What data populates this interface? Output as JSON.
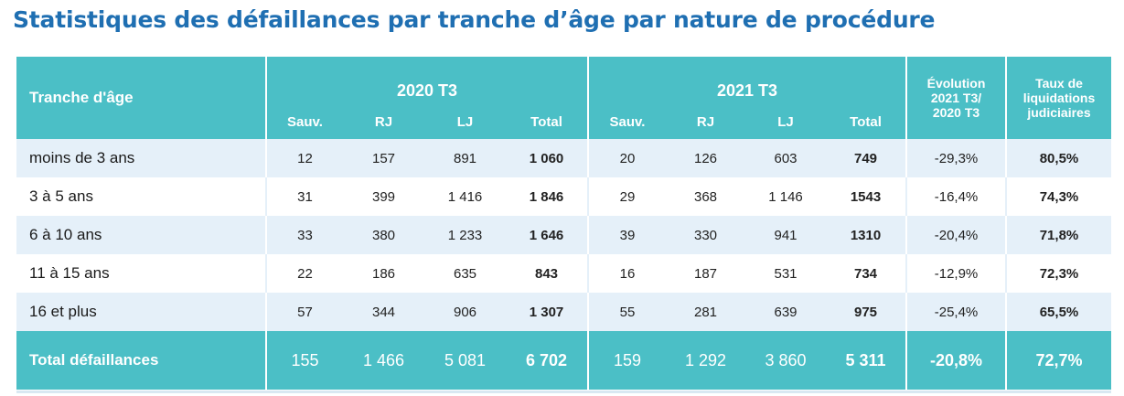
{
  "title": "Statistiques des défaillances par tranche d’âge par nature de procédure",
  "header": {
    "row_head": "Tranche d'âge",
    "group_2020": "2020 T3",
    "group_2021": "2021 T3",
    "evolution": [
      "Évolution",
      "2021 T3/",
      "2020 T3"
    ],
    "taux": [
      "Taux de",
      "liquidations",
      "judiciaires"
    ],
    "sub": {
      "sauv": "Sauv.",
      "rj": "RJ",
      "lj": "LJ",
      "total": "Total"
    }
  },
  "rows": [
    {
      "label": "moins de 3 ans",
      "s20": "12",
      "rj20": "157",
      "lj20": "891",
      "t20": "1 060",
      "s21": "20",
      "rj21": "126",
      "lj21": "603",
      "t21": "749",
      "evo": "-29,3%",
      "taux": "80,5%"
    },
    {
      "label": "3 à 5 ans",
      "s20": "31",
      "rj20": "399",
      "lj20": "1 416",
      "t20": "1 846",
      "s21": "29",
      "rj21": "368",
      "lj21": "1 146",
      "t21": "1543",
      "evo": "-16,4%",
      "taux": "74,3%"
    },
    {
      "label": "6 à 10 ans",
      "s20": "33",
      "rj20": "380",
      "lj20": "1 233",
      "t20": "1 646",
      "s21": "39",
      "rj21": "330",
      "lj21": "941",
      "t21": "1310",
      "evo": "-20,4%",
      "taux": "71,8%"
    },
    {
      "label": "11 à 15 ans",
      "s20": "22",
      "rj20": "186",
      "lj20": "635",
      "t20": "843",
      "s21": "16",
      "rj21": "187",
      "lj21": "531",
      "t21": "734",
      "evo": "-12,9%",
      "taux": "72,3%"
    },
    {
      "label": "16 et plus",
      "s20": "57",
      "rj20": "344",
      "lj20": "906",
      "t20": "1 307",
      "s21": "55",
      "rj21": "281",
      "lj21": "639",
      "t21": "975",
      "evo": "-25,4%",
      "taux": "65,5%"
    }
  ],
  "total": {
    "label": "Total défaillances",
    "s20": "155",
    "rj20": "1 466",
    "lj20": "5 081",
    "t20": "6 702",
    "s21": "159",
    "rj21": "1 292",
    "lj21": "3 860",
    "t21": "5 311",
    "evo": "-20,8%",
    "taux": "72,7%"
  },
  "colors": {
    "title": "#1f6fb2",
    "header_bg": "#4bbfc6",
    "stripe": "#e5f0f9"
  }
}
